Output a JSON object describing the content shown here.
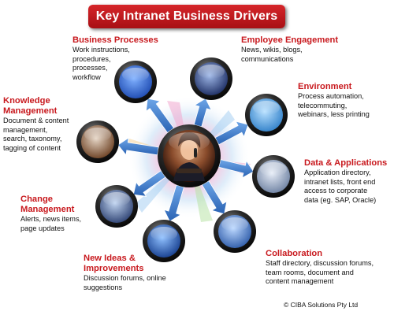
{
  "title": "Key Intranet Business Drivers",
  "nodes": [
    {
      "heading": "Business Processes",
      "body": "Work instructions,\nprocedures,\nprocesses,\nworkflow",
      "icon": "puzzle-icon"
    },
    {
      "heading": "Employee Engagement",
      "body": "News, wikis, blogs,\ncommunications",
      "icon": "stage-lights-icon"
    },
    {
      "heading": "Environment",
      "body": "Process automation,\ntelecommuting,\nwebinars, less printing",
      "icon": "family-icon"
    },
    {
      "heading": "Data & Applications",
      "body": "Application directory,\nintranet lists, front end\naccess to corporate\ndata (eg. SAP, Oracle)",
      "icon": "laptop-icon"
    },
    {
      "heading": "Collaboration",
      "body": "Staff directory, discussion forums,\nteam rooms, document and\ncontent management",
      "icon": "handshake-icon"
    },
    {
      "heading": "New Ideas &\nImprovements",
      "body": "Discussion forums, online\nsuggestions",
      "icon": "lightbulb-icon"
    },
    {
      "heading": "Change\nManagement",
      "body": "Alerts,  news items,\npage updates",
      "icon": "keyboard-icon"
    },
    {
      "heading": "Knowledge\nManagement",
      "body": "Document & content\nmanagement,\nsearch, taxonomy,\ntagging of content",
      "icon": "books-icon"
    }
  ],
  "center_icon": "businesswoman-phone-icon",
  "copyright": "© CIBA Solutions Pty Ltd",
  "colors": {
    "accent": "#c8191e",
    "arrow": "#3a76c4",
    "ring": "#1b1b1b"
  }
}
